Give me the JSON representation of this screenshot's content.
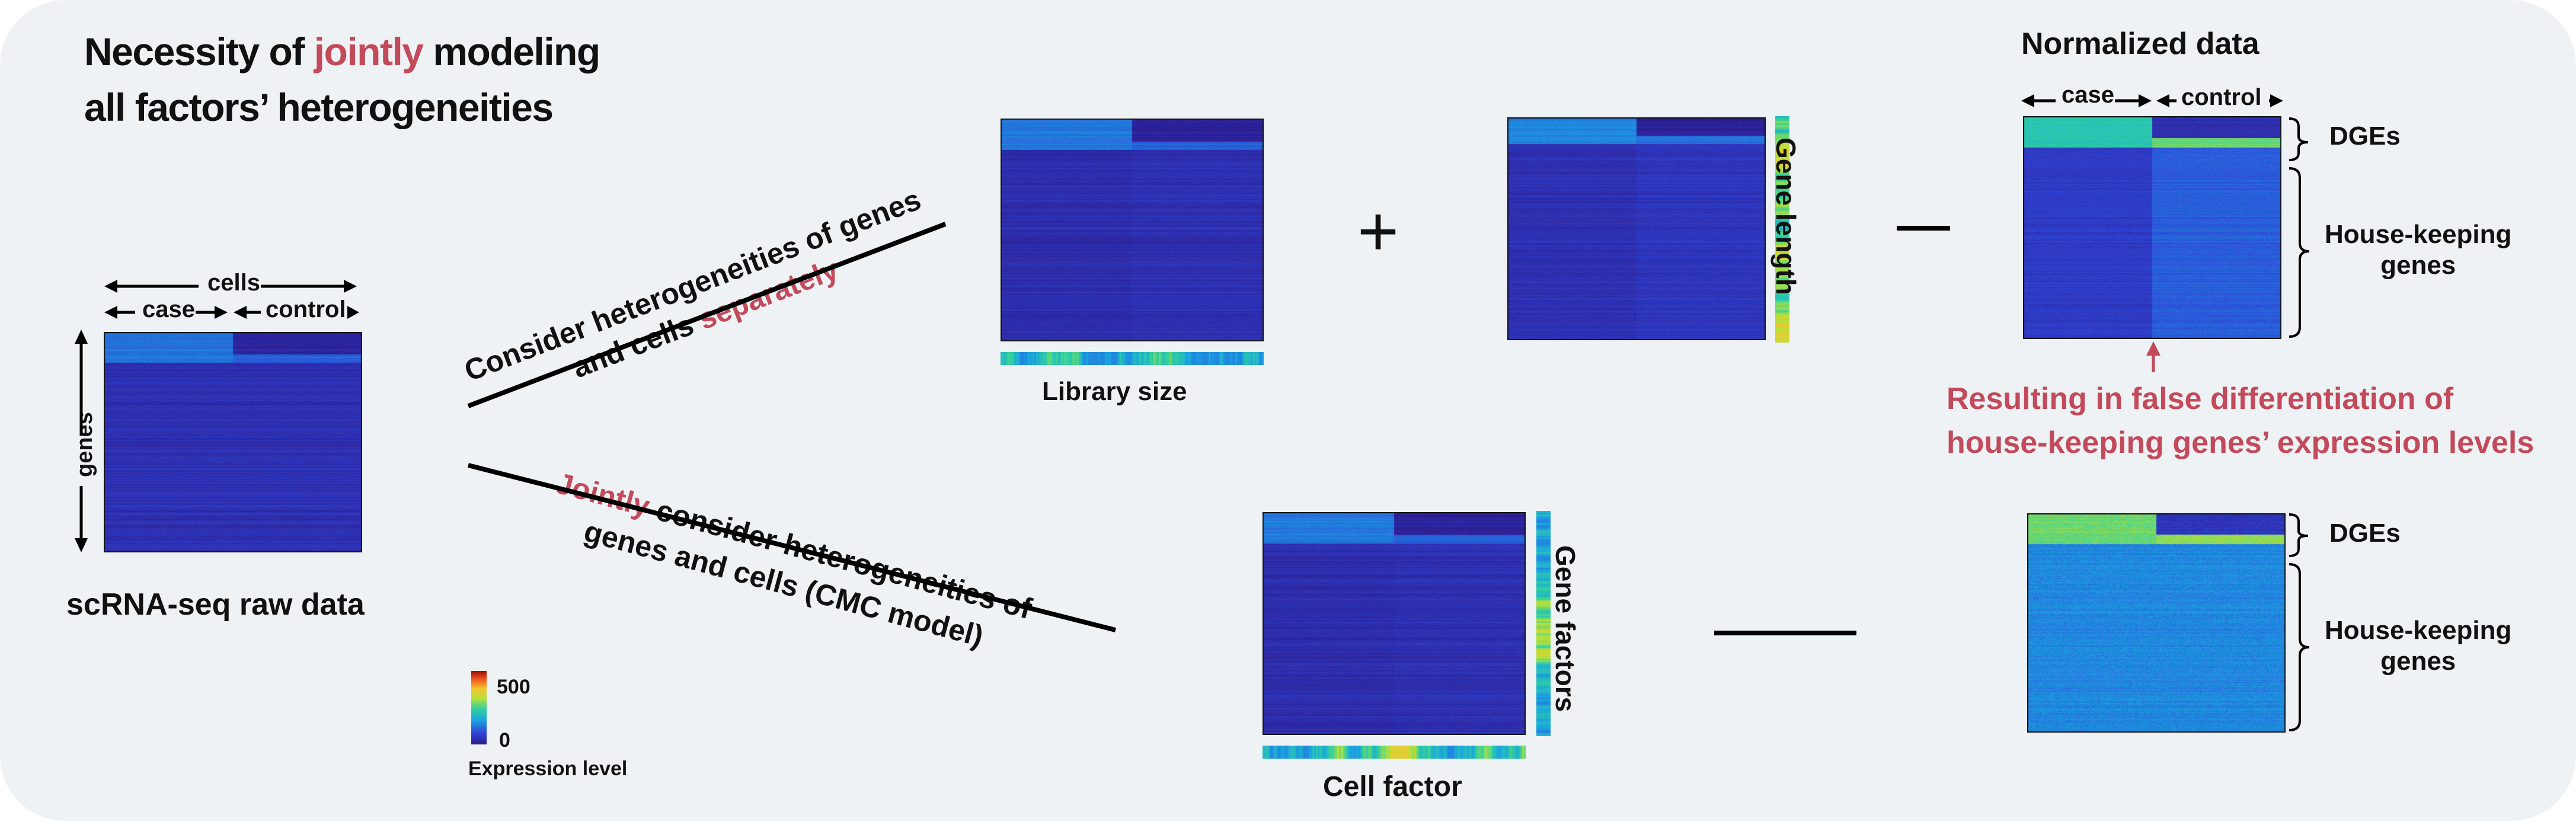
{
  "title": {
    "line1_pre": "Necessity of ",
    "line1_em": "jointly",
    "line1_post": " modeling",
    "line2": "all factors’ heterogeneities"
  },
  "raw": {
    "cells_label": "cells",
    "case_label": "case",
    "control_label": "control",
    "genes_label": "genes",
    "caption": "scRNA-seq raw data"
  },
  "top_path": {
    "line1": "Consider heterogeneities of genes",
    "line2_pre": "and cells ",
    "line2_em": "separately",
    "library_caption": "Library size",
    "plus": "+",
    "gene_length_caption": "Gene length"
  },
  "bottom_path": {
    "line1_em": "Jointly",
    "line1_post": " consider heterogeneities of",
    "line2": "genes and cells (CMC model)",
    "gene_factors_caption": "Gene factors",
    "cell_factor_caption": "Cell factor"
  },
  "normalized": {
    "title": "Normalized data",
    "case_label": "case",
    "control_label": "control",
    "dges_label": "DGEs",
    "hk_line1": "House-keeping",
    "hk_line2": "genes",
    "dges_label_2": "DGEs",
    "hk2_line1": "House-keeping",
    "hk2_line2": "genes"
  },
  "false_diff": {
    "line1": "Resulting in false differentiation of",
    "line2": "house-keeping genes’ expression levels"
  },
  "colorbar": {
    "max_label": "500",
    "min_label": "0",
    "caption": "Expression level"
  },
  "colors": {
    "accent_red": "#c24a5b",
    "panel_bg": "#eff2f5",
    "heatmap_base": "#2a2e8c"
  }
}
